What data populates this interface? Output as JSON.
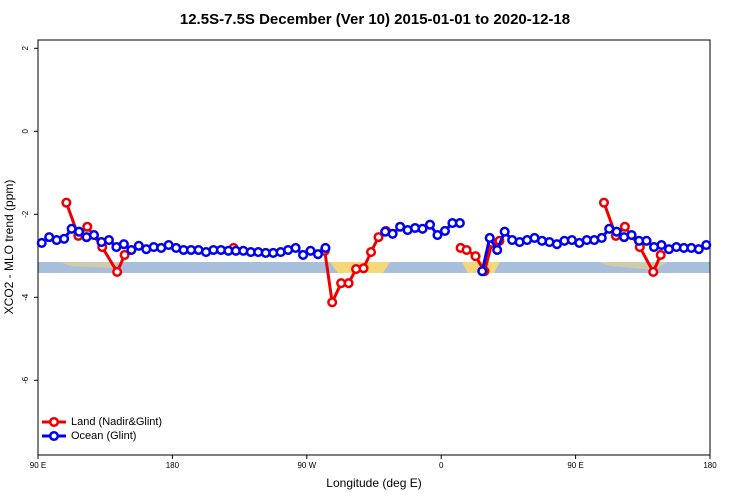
{
  "chart_data": {
    "type": "line",
    "title": "12.5S-7.5S December (Ver 10)   2015-01-01 to 2020-12-18",
    "xlabel": "Longitude (deg E)",
    "ylabel": "XCO2 - MLO trend (ppm)",
    "xlim": [
      90,
      540
    ],
    "ylim": [
      -7.8,
      2.2
    ],
    "xticks": [
      {
        "value": 90,
        "label": "90 E"
      },
      180,
      {
        "value": 270,
        "label": "90 W"
      },
      {
        "value": 360,
        "label": "0"
      },
      {
        "value": 450,
        "label": "90 E"
      },
      {
        "value": 540,
        "label": "180"
      }
    ],
    "yticks": [
      2,
      0,
      -2,
      -4,
      -6
    ],
    "legend": "bottom-left",
    "series": [
      {
        "name": "Land (Nadir&Glint)",
        "color": "#ee0000",
        "x": [
          109,
          117,
          123,
          133,
          143,
          148,
          185,
          221,
          250,
          282,
          287,
          293,
          298,
          303,
          308,
          313,
          318,
          323,
          350,
          373,
          377,
          383,
          389,
          394,
          399,
          440,
          469,
          477,
          483,
          493,
          502,
          507
        ],
        "values": [
          -1.72,
          -2.52,
          -2.3,
          -2.79,
          -3.39,
          -2.98,
          null,
          -2.81,
          null,
          -2.88,
          -4.12,
          -3.66,
          -3.66,
          -3.32,
          -3.3,
          -2.91,
          -2.55,
          -2.4,
          null,
          -2.81,
          -2.86,
          -3.01,
          -3.37,
          -2.69,
          -2.64,
          null,
          -1.72,
          -2.52,
          -2.3,
          -2.79,
          -3.39,
          -2.98
        ]
      },
      {
        "name": "Ocean (Glint)",
        "color": "#0000ee",
        "x": [
          92.5,
          97.5,
          102.5,
          107.5,
          112.5,
          117.5,
          122.5,
          127.5,
          132.5,
          137.5,
          142.5,
          147.5,
          152.5,
          157.5,
          162.5,
          167.5,
          172.5,
          177.5,
          182.5,
          187.5,
          192.5,
          197.5,
          202.5,
          207.5,
          212.5,
          217.5,
          222.5,
          227.5,
          232.5,
          237.5,
          242.5,
          247.5,
          252.5,
          257.5,
          262.5,
          267.5,
          272.5,
          277.5,
          282.5,
          287.5,
          292.5,
          297.5,
          302.5,
          307.5,
          312.5,
          317.5,
          322.5,
          327.5,
          332.5,
          337.5,
          342.5,
          347.5,
          352.5,
          357.5,
          362.5,
          367.5,
          372.5,
          377.5,
          382.5,
          387.5,
          392.5,
          397.5,
          402.5,
          407.5,
          412.5,
          417.5,
          422.5,
          427.5,
          432.5,
          437.5,
          442.5,
          447.5,
          452.5,
          457.5,
          462.5,
          467.5,
          472.5,
          477.5,
          482.5,
          487.5,
          492.5,
          497.5,
          502.5,
          507.5,
          512.5,
          517.5,
          522.5,
          527.5,
          532.5,
          537.5
        ],
        "values": [
          -2.69,
          -2.55,
          -2.62,
          -2.59,
          -2.35,
          -2.42,
          -2.55,
          -2.5,
          -2.67,
          -2.62,
          -2.79,
          -2.72,
          -2.86,
          -2.76,
          -2.84,
          -2.79,
          -2.81,
          -2.74,
          -2.81,
          -2.86,
          -2.86,
          -2.86,
          -2.91,
          -2.86,
          -2.86,
          -2.88,
          -2.88,
          -2.88,
          -2.91,
          -2.91,
          -2.93,
          -2.93,
          -2.91,
          -2.86,
          -2.81,
          -2.98,
          -2.88,
          -2.96,
          -2.81,
          null,
          null,
          null,
          null,
          null,
          null,
          null,
          -2.42,
          -2.47,
          -2.3,
          -2.38,
          -2.33,
          -2.35,
          -2.25,
          -2.5,
          -2.4,
          -2.21,
          -2.21,
          null,
          null,
          -3.37,
          -2.57,
          -2.86,
          -2.42,
          -2.62,
          -2.67,
          -2.62,
          -2.57,
          -2.64,
          -2.67,
          -2.72,
          -2.64,
          -2.62,
          -2.69,
          -2.62,
          -2.62,
          -2.57,
          -2.35,
          -2.42,
          -2.55,
          -2.5,
          -2.64,
          -2.64,
          -2.79,
          -2.74,
          -2.84,
          -2.79,
          -2.81,
          -2.81,
          -2.84,
          -2.74
        ]
      }
    ]
  }
}
